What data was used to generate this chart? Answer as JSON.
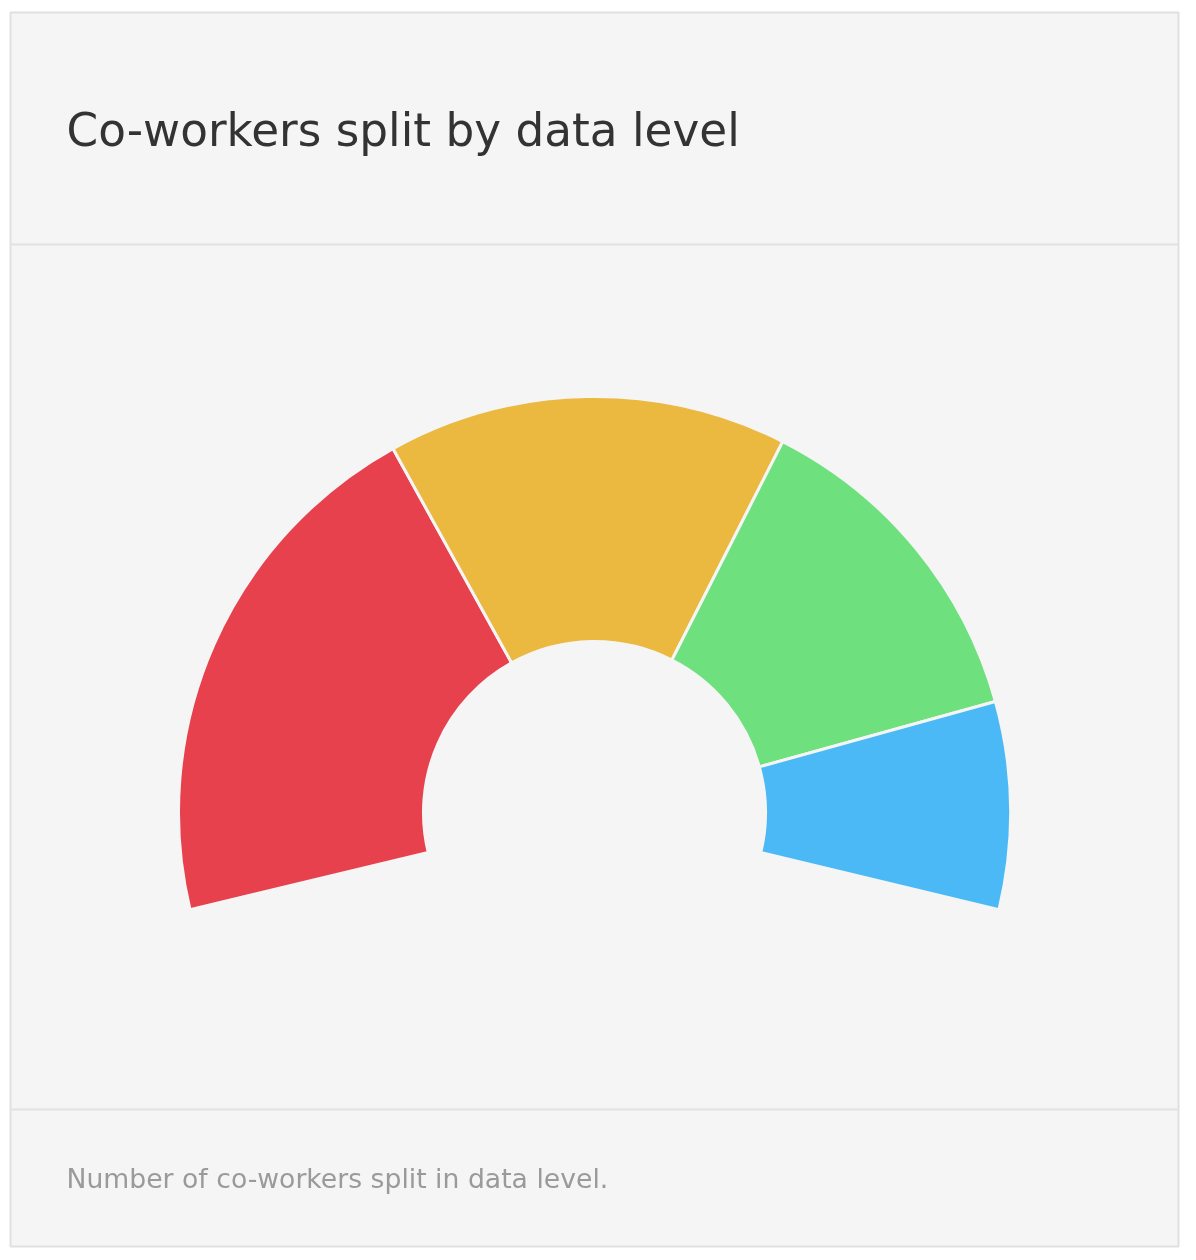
{
  "chart_data": {
    "type": "donut",
    "title": "Co-workers split by data level",
    "categories": [
      null,
      null,
      null,
      null
    ],
    "values": [
      36,
      27,
      23,
      14
    ],
    "colors": [
      "#e8414e",
      "#ebb840",
      "#6ee07d",
      "#4bb9f5"
    ],
    "annotations": [
      "Number of co-workers split in data level."
    ]
  }
}
